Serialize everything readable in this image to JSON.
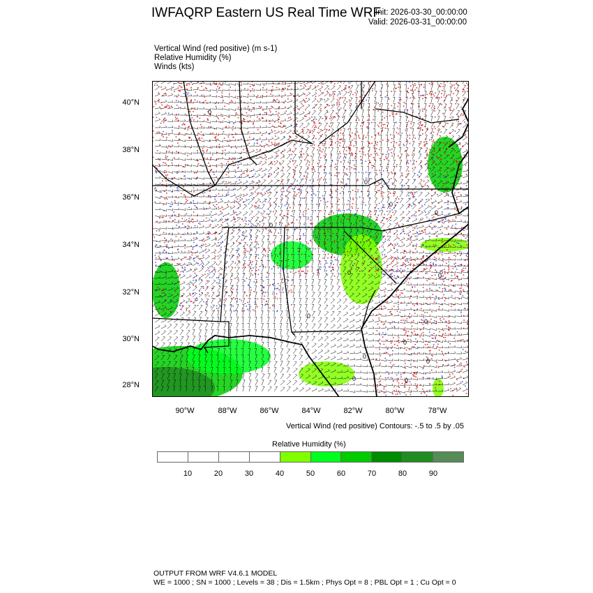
{
  "header": {
    "title": "IWFAQRP Eastern US Real Time WRF",
    "init": "Init: 2026-03-30_00:00:00",
    "valid": "Valid: 2026-03-31_00:00:00"
  },
  "fields": [
    "Vertical Wind (red positive)   (m s-1)",
    "Relative Humidity   (%)",
    "Winds   (kts)"
  ],
  "map": {
    "lat_labels": [
      "40°N",
      "38°N",
      "36°N",
      "34°N",
      "32°N",
      "30°N",
      "28°N"
    ],
    "lon_labels": [
      "90°W",
      "88°W",
      "86°W",
      "84°W",
      "82°W",
      "80°W",
      "78°W"
    ],
    "contour_label": "0",
    "colors": {
      "updraft": "#e00000",
      "downdraft": "#2040e0",
      "border": "#000000",
      "barb": "#000000"
    }
  },
  "contour_info": "Vertical Wind (red positive) Contours: -.5 to .5 by .05",
  "colorbar": {
    "title": "Relative Humidity  (%)",
    "colors": [
      "#ffffff",
      "#ffffff",
      "#ffffff",
      "#ffffff",
      "#80ff00",
      "#00ff20",
      "#00cc00",
      "#008c00",
      "#228b22",
      "#568c56"
    ],
    "labels": [
      "10",
      "20",
      "30",
      "40",
      "50",
      "60",
      "70",
      "80",
      "90"
    ]
  },
  "footer": {
    "line1": "OUTPUT FROM WRF V4.6.1 MODEL",
    "line2": "WE = 1000 ; SN = 1000 ; Levels = 38 ; Dis = 1.5km ; Phys Opt = 8 ; PBL Opt = 1 ; Cu Opt = 0"
  }
}
